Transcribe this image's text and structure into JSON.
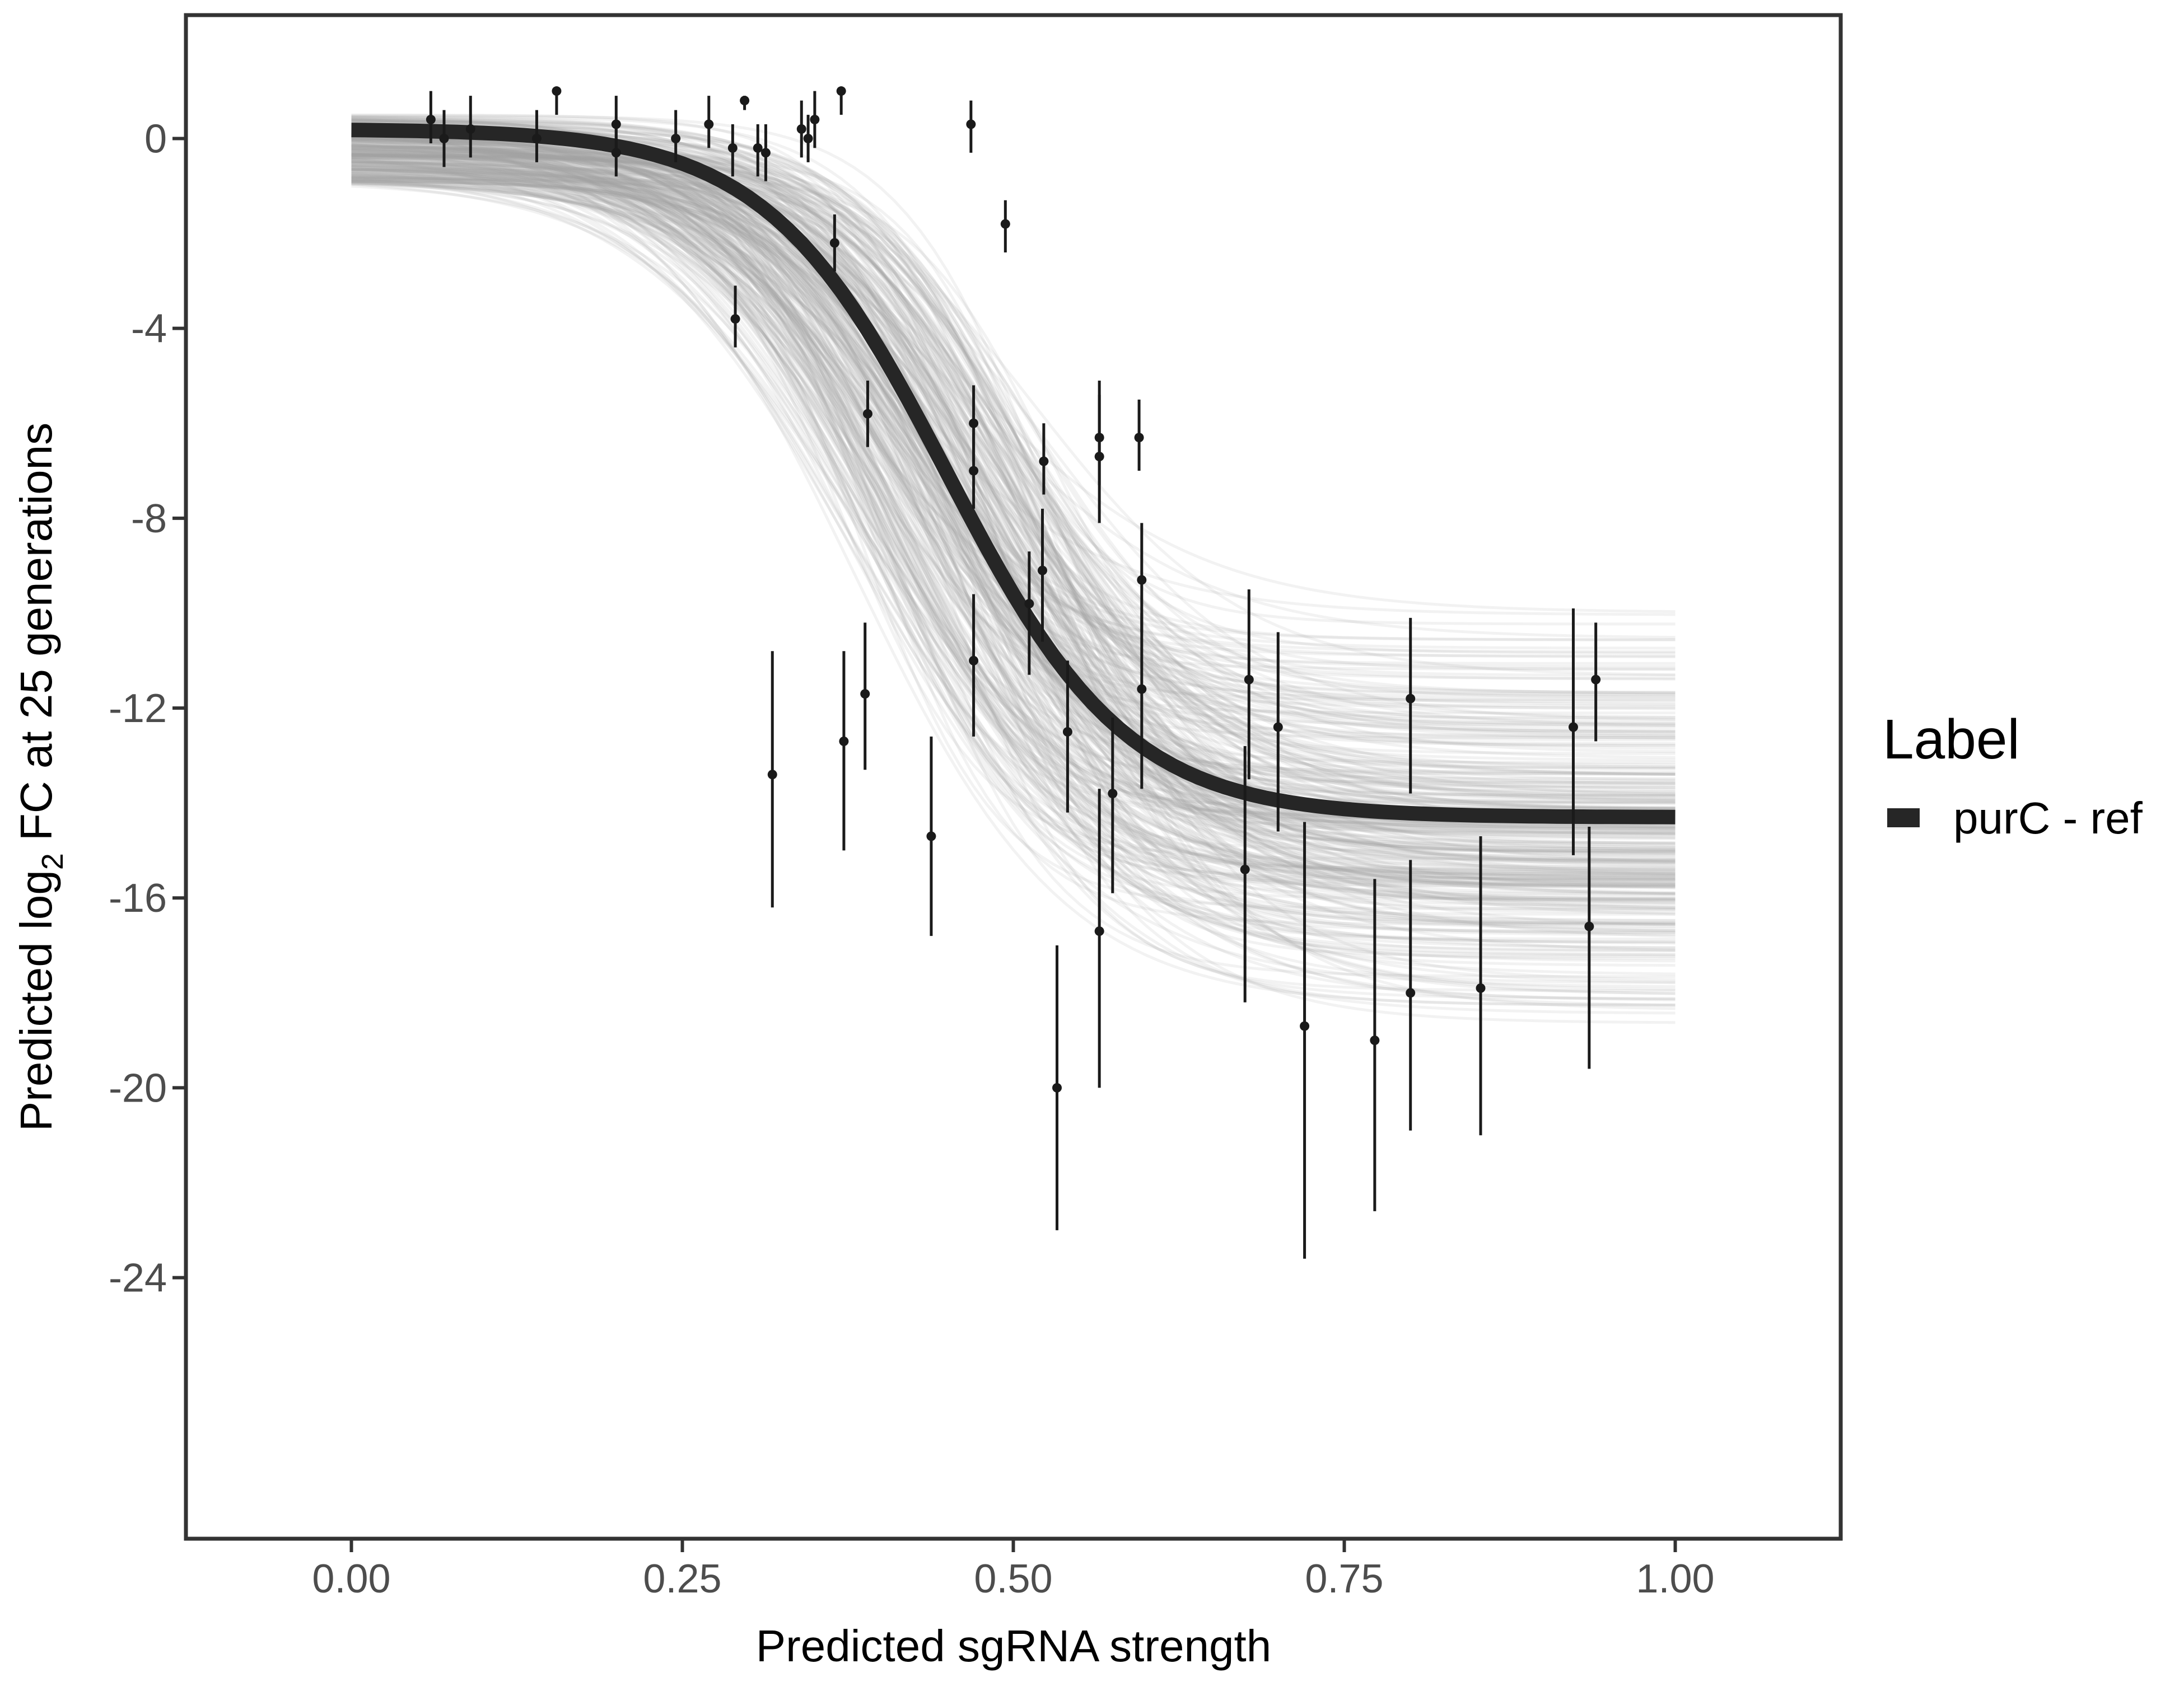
{
  "chart_data": {
    "type": "line",
    "title": "",
    "xlabel": "Predicted sgRNA strength",
    "ylabel_parts": [
      "Predicted  log",
      "2",
      " FC at 25 generations"
    ],
    "xlim": [
      -0.125,
      1.125
    ],
    "ylim": [
      -29.5,
      2.6
    ],
    "x_ticks": [
      0.0,
      0.25,
      0.5,
      0.75,
      1.0
    ],
    "x_tick_labels": [
      "0.00",
      "0.25",
      "0.50",
      "0.75",
      "1.00"
    ],
    "y_ticks": [
      0,
      -4,
      -8,
      -12,
      -16,
      -20,
      -24
    ],
    "y_tick_labels": [
      "0",
      "-4",
      "-8",
      "-12",
      "-16",
      "-20",
      "-24"
    ],
    "grid": false,
    "legend": {
      "title": "Label",
      "placement": "right",
      "entries": [
        {
          "label": "purC - ref",
          "color": "#262626"
        }
      ]
    },
    "fit_curve": {
      "name": "purC - ref",
      "model": "logistic",
      "upper": 0.2,
      "lower": -14.3,
      "midpoint": 0.45,
      "scale": 0.068,
      "color": "#262626"
    },
    "posterior_band": {
      "color": "#a0a0a0",
      "samples": 320,
      "upper_range": [
        -0.9,
        0.5
      ],
      "lower_range": [
        -19.4,
        -9.9
      ],
      "midpoint_range": [
        0.37,
        0.53
      ],
      "scale_range": [
        0.05,
        0.09
      ]
    },
    "points": [
      {
        "x": 0.06,
        "y": 0.4,
        "lo": -0.1,
        "hi": 1.0
      },
      {
        "x": 0.07,
        "y": 0.0,
        "lo": -0.6,
        "hi": 0.6
      },
      {
        "x": 0.09,
        "y": 0.2,
        "lo": -0.4,
        "hi": 0.9
      },
      {
        "x": 0.14,
        "y": 0.0,
        "lo": -0.5,
        "hi": 0.6
      },
      {
        "x": 0.155,
        "y": 1.0,
        "lo": 0.5,
        "hi": 1.05
      },
      {
        "x": 0.2,
        "y": 0.3,
        "lo": -0.3,
        "hi": 0.9
      },
      {
        "x": 0.2,
        "y": -0.3,
        "lo": -0.8,
        "hi": 0.3
      },
      {
        "x": 0.245,
        "y": 0.0,
        "lo": -0.5,
        "hi": 0.6
      },
      {
        "x": 0.27,
        "y": 0.3,
        "lo": -0.2,
        "hi": 0.9
      },
      {
        "x": 0.288,
        "y": -0.2,
        "lo": -0.8,
        "hi": 0.3
      },
      {
        "x": 0.29,
        "y": -3.8,
        "lo": -4.4,
        "hi": -3.1
      },
      {
        "x": 0.297,
        "y": 0.8,
        "lo": 0.6,
        "hi": 0.9
      },
      {
        "x": 0.307,
        "y": -0.2,
        "lo": -0.8,
        "hi": 0.3
      },
      {
        "x": 0.313,
        "y": -0.3,
        "lo": -0.9,
        "hi": 0.3
      },
      {
        "x": 0.318,
        "y": -13.4,
        "lo": -16.2,
        "hi": -10.8
      },
      {
        "x": 0.34,
        "y": 0.2,
        "lo": -0.4,
        "hi": 0.8
      },
      {
        "x": 0.345,
        "y": 0.0,
        "lo": -0.5,
        "hi": 0.5
      },
      {
        "x": 0.35,
        "y": 0.4,
        "lo": -0.2,
        "hi": 1.0
      },
      {
        "x": 0.365,
        "y": -2.2,
        "lo": -2.8,
        "hi": -1.6
      },
      {
        "x": 0.37,
        "y": 1.0,
        "lo": 0.5,
        "hi": 1.05
      },
      {
        "x": 0.372,
        "y": -12.7,
        "lo": -15.0,
        "hi": -10.8
      },
      {
        "x": 0.388,
        "y": -11.7,
        "lo": -13.3,
        "hi": -10.2
      },
      {
        "x": 0.39,
        "y": -5.8,
        "lo": -6.5,
        "hi": -5.1
      },
      {
        "x": 0.438,
        "y": -14.7,
        "lo": -16.8,
        "hi": -12.6
      },
      {
        "x": 0.468,
        "y": 0.3,
        "lo": -0.3,
        "hi": 0.8
      },
      {
        "x": 0.47,
        "y": -6.0,
        "lo": -6.8,
        "hi": -5.2
      },
      {
        "x": 0.47,
        "y": -7.0,
        "lo": -7.8,
        "hi": -6.2
      },
      {
        "x": 0.47,
        "y": -11.0,
        "lo": -12.6,
        "hi": -9.6
      },
      {
        "x": 0.494,
        "y": -1.8,
        "lo": -2.4,
        "hi": -1.3
      },
      {
        "x": 0.512,
        "y": -9.8,
        "lo": -11.3,
        "hi": -8.7
      },
      {
        "x": 0.522,
        "y": -9.1,
        "lo": -10.6,
        "hi": -7.8
      },
      {
        "x": 0.523,
        "y": -6.8,
        "lo": -7.5,
        "hi": -6.0
      },
      {
        "x": 0.533,
        "y": -20.0,
        "lo": -23.0,
        "hi": -17.0
      },
      {
        "x": 0.541,
        "y": -12.5,
        "lo": -14.2,
        "hi": -11.0
      },
      {
        "x": 0.565,
        "y": -6.3,
        "lo": -7.3,
        "hi": -5.1
      },
      {
        "x": 0.565,
        "y": -6.7,
        "lo": -8.1,
        "hi": -5.4
      },
      {
        "x": 0.565,
        "y": -16.7,
        "lo": -20.0,
        "hi": -13.7
      },
      {
        "x": 0.575,
        "y": -13.8,
        "lo": -15.9,
        "hi": -12.2
      },
      {
        "x": 0.595,
        "y": -6.3,
        "lo": -7.0,
        "hi": -5.5
      },
      {
        "x": 0.597,
        "y": -9.3,
        "lo": -10.4,
        "hi": -8.1
      },
      {
        "x": 0.597,
        "y": -11.6,
        "lo": -13.7,
        "hi": -10.0
      },
      {
        "x": 0.675,
        "y": -15.4,
        "lo": -18.2,
        "hi": -12.8
      },
      {
        "x": 0.678,
        "y": -11.4,
        "lo": -13.5,
        "hi": -9.5
      },
      {
        "x": 0.7,
        "y": -12.4,
        "lo": -14.6,
        "hi": -10.4
      },
      {
        "x": 0.72,
        "y": -18.7,
        "lo": -23.6,
        "hi": -14.4
      },
      {
        "x": 0.773,
        "y": -19.0,
        "lo": -22.6,
        "hi": -15.6
      },
      {
        "x": 0.8,
        "y": -11.8,
        "lo": -13.8,
        "hi": -10.1
      },
      {
        "x": 0.8,
        "y": -18.0,
        "lo": -20.9,
        "hi": -15.2
      },
      {
        "x": 0.853,
        "y": -17.9,
        "lo": -21.0,
        "hi": -14.7
      },
      {
        "x": 0.923,
        "y": -12.4,
        "lo": -15.1,
        "hi": -9.9
      },
      {
        "x": 0.935,
        "y": -16.6,
        "lo": -19.6,
        "hi": -14.5
      },
      {
        "x": 0.94,
        "y": -11.4,
        "lo": -12.7,
        "hi": -10.2
      }
    ]
  }
}
